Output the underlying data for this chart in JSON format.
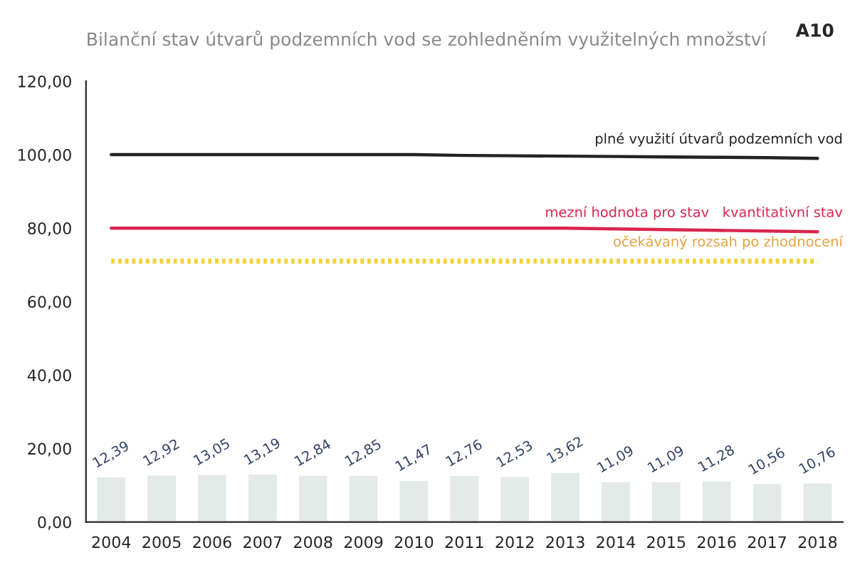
{
  "chart_data": {
    "type": "bar",
    "title": "Bilanční stav útvarů podzemních vod se zohledněním využitelných množství",
    "categories": [
      "2004",
      "2005",
      "2006",
      "2007",
      "2008",
      "2009",
      "2010",
      "2011",
      "2012",
      "2013",
      "2014",
      "2015",
      "2016",
      "2017",
      "2018"
    ],
    "series": [
      {
        "color": "#e2ebe8",
        "values": [
          12.39,
          12.92,
          13.05,
          13.19,
          12.84,
          12.85,
          11.47,
          12.76,
          12.53,
          13.62,
          11.09,
          11.09,
          11.28,
          10.56,
          10.76
        ],
        "value_labels": [
          "12,39",
          "12,92",
          "13,05",
          "13,19",
          "12,84",
          "12,85",
          "11,47",
          "12,76",
          "12,53",
          "13,62",
          "11,09",
          "11,09",
          "11,28",
          "10,56",
          "10,76"
        ]
      },
      {
        "type": "line",
        "color": "#222222",
        "line_style": "solid",
        "values": [
          100,
          100,
          100,
          100,
          100,
          100,
          100,
          99.8,
          99.7,
          99.6,
          99.5,
          99.4,
          99.3,
          99.2,
          99
        ]
      },
      {
        "type": "line",
        "color": "#d8264f",
        "line_style": "solid",
        "values": [
          80,
          80,
          80,
          80,
          80,
          80,
          80,
          80,
          80,
          80,
          79.8,
          79.6,
          79.4,
          79.2,
          79
        ]
      },
      {
        "type": "line",
        "color": "#f2d23a",
        "line_style": "dotted",
        "values": [
          71,
          71,
          71,
          71,
          71,
          71,
          71,
          71,
          71,
          71,
          71,
          71,
          71,
          71,
          71
        ]
      }
    ],
    "ylim": [
      0,
      120
    ],
    "yticks": [
      {
        "value": 0,
        "label": "0,00"
      },
      {
        "value": 20,
        "label": "20,00"
      },
      {
        "value": 40,
        "label": "40,00"
      },
      {
        "value": 60,
        "label": "60,00"
      },
      {
        "value": 80,
        "label": "80,00"
      },
      {
        "value": 100,
        "label": "100,00"
      },
      {
        "value": 120,
        "label": "120,00"
      }
    ],
    "annotations": [
      "plné využití útvarů podzemních vod",
      "mezní hodnota pro stav   kvantitativní stav",
      "očekávaný rozsah po zhodnocení",
      "A10"
    ],
    "grid": false,
    "legend": false
  }
}
